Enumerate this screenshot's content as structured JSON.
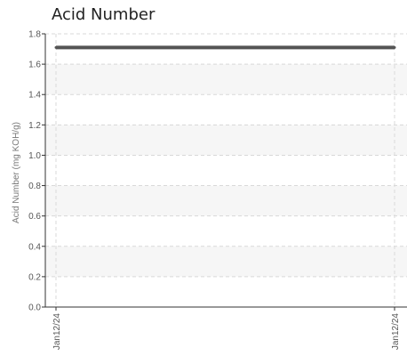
{
  "chart_data": {
    "type": "line",
    "title": "Acid Number",
    "xlabel": "",
    "ylabel": "Acid Number (mg KOH/g)",
    "x": [
      "Jan12/24",
      "Jan12/24"
    ],
    "series": [
      {
        "values": [
          1.71,
          1.71
        ],
        "color": "#555555"
      }
    ],
    "ylim": [
      0,
      1.8
    ],
    "yticks": [
      "0.0",
      "0.2",
      "0.4",
      "0.6",
      "0.8",
      "1.0",
      "1.2",
      "1.4",
      "1.6",
      "1.8"
    ],
    "grid": true,
    "band_color": "#f6f6f6"
  }
}
